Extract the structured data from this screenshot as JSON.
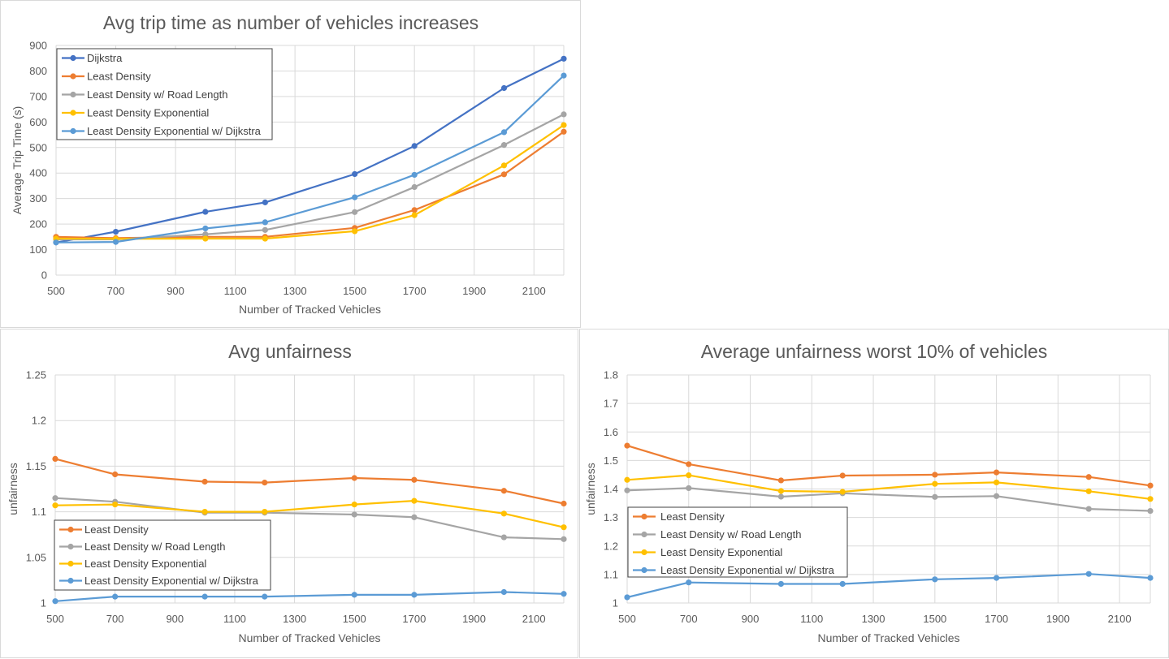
{
  "colors": {
    "series": [
      "#4472C4",
      "#ED7D31",
      "#A5A5A5",
      "#FFC000",
      "#5B9BD5"
    ],
    "grid": "#d9d9d9",
    "text": "#595959"
  },
  "chart_data": [
    {
      "type": "line",
      "title": "Avg trip time as number of vehicles increases",
      "xlabel": "Number of Tracked Vehicles",
      "ylabel": "Average Trip Time (s)",
      "x": [
        500,
        700,
        1000,
        1200,
        1500,
        1700,
        2000,
        2200
      ],
      "xlim": [
        500,
        2200
      ],
      "xticks": [
        500,
        700,
        900,
        1100,
        1300,
        1500,
        1700,
        1900,
        2100
      ],
      "ylim": [
        0,
        900
      ],
      "yticks": [
        0,
        100,
        200,
        300,
        400,
        500,
        600,
        700,
        800,
        900
      ],
      "grid": true,
      "legend": "top-left",
      "series": [
        {
          "name": "Dijkstra",
          "color": "#4472C4",
          "values": [
            128,
            170,
            248,
            285,
            396,
            506,
            733,
            848
          ]
        },
        {
          "name": "Least Density",
          "color": "#ED7D31",
          "values": [
            150,
            145,
            150,
            150,
            185,
            255,
            395,
            562
          ]
        },
        {
          "name": "Least Density w/ Road Length",
          "color": "#A5A5A5",
          "values": [
            140,
            140,
            160,
            177,
            247,
            345,
            510,
            630
          ]
        },
        {
          "name": "Least Density Exponential",
          "color": "#FFC000",
          "values": [
            143,
            142,
            143,
            143,
            172,
            235,
            430,
            588
          ]
        },
        {
          "name": "Least Density Exponential w/ Dijkstra",
          "color": "#5B9BD5",
          "values": [
            128,
            130,
            183,
            207,
            305,
            393,
            560,
            782
          ]
        }
      ]
    },
    {
      "type": "line",
      "title": "Avg unfairness",
      "xlabel": "Number of Tracked Vehicles",
      "ylabel": "unfairness",
      "x": [
        500,
        700,
        1000,
        1200,
        1500,
        1700,
        2000,
        2200
      ],
      "xlim": [
        500,
        2200
      ],
      "xticks": [
        500,
        700,
        900,
        1100,
        1300,
        1500,
        1700,
        1900,
        2100
      ],
      "ylim": [
        1,
        1.25
      ],
      "yticks": [
        "1",
        "1.05",
        "1.1",
        "1.15",
        "1.2",
        "1.25"
      ],
      "grid": true,
      "legend": "bottom-left",
      "series": [
        {
          "name": "Least Density",
          "color": "#ED7D31",
          "values": [
            1.158,
            1.141,
            1.133,
            1.132,
            1.137,
            1.135,
            1.123,
            1.109
          ]
        },
        {
          "name": "Least Density w/ Road Length",
          "color": "#A5A5A5",
          "values": [
            1.115,
            1.111,
            1.099,
            1.099,
            1.097,
            1.094,
            1.072,
            1.07
          ]
        },
        {
          "name": "Least Density Exponential",
          "color": "#FFC000",
          "values": [
            1.107,
            1.108,
            1.1,
            1.1,
            1.108,
            1.112,
            1.098,
            1.083
          ]
        },
        {
          "name": "Least Density Exponential w/ Dijkstra",
          "color": "#5B9BD5",
          "values": [
            1.002,
            1.007,
            1.007,
            1.007,
            1.009,
            1.009,
            1.012,
            1.01
          ]
        }
      ]
    },
    {
      "type": "line",
      "title": "Average unfairness worst 10% of vehicles",
      "xlabel": "Number of Tracked Vehicles",
      "ylabel": "unfairness",
      "x": [
        500,
        700,
        1000,
        1200,
        1500,
        1700,
        2000,
        2200
      ],
      "xlim": [
        500,
        2200
      ],
      "xticks": [
        500,
        700,
        900,
        1100,
        1300,
        1500,
        1700,
        1900,
        2100
      ],
      "ylim": [
        1,
        1.8
      ],
      "yticks": [
        "1",
        "1.1",
        "1.2",
        "1.3",
        "1.4",
        "1.5",
        "1.6",
        "1.7",
        "1.8"
      ],
      "grid": true,
      "legend": "bottom-left",
      "series": [
        {
          "name": "Least Density",
          "color": "#ED7D31",
          "values": [
            1.552,
            1.487,
            1.43,
            1.447,
            1.45,
            1.458,
            1.442,
            1.412
          ]
        },
        {
          "name": "Least Density w/ Road Length",
          "color": "#A5A5A5",
          "values": [
            1.395,
            1.403,
            1.373,
            1.385,
            1.372,
            1.375,
            1.33,
            1.323
          ]
        },
        {
          "name": "Least Density Exponential",
          "color": "#FFC000",
          "values": [
            1.432,
            1.448,
            1.393,
            1.39,
            1.418,
            1.423,
            1.392,
            1.365
          ]
        },
        {
          "name": "Least Density Exponential w/ Dijkstra",
          "color": "#5B9BD5",
          "values": [
            1.02,
            1.072,
            1.067,
            1.067,
            1.083,
            1.088,
            1.102,
            1.088
          ]
        }
      ]
    }
  ]
}
